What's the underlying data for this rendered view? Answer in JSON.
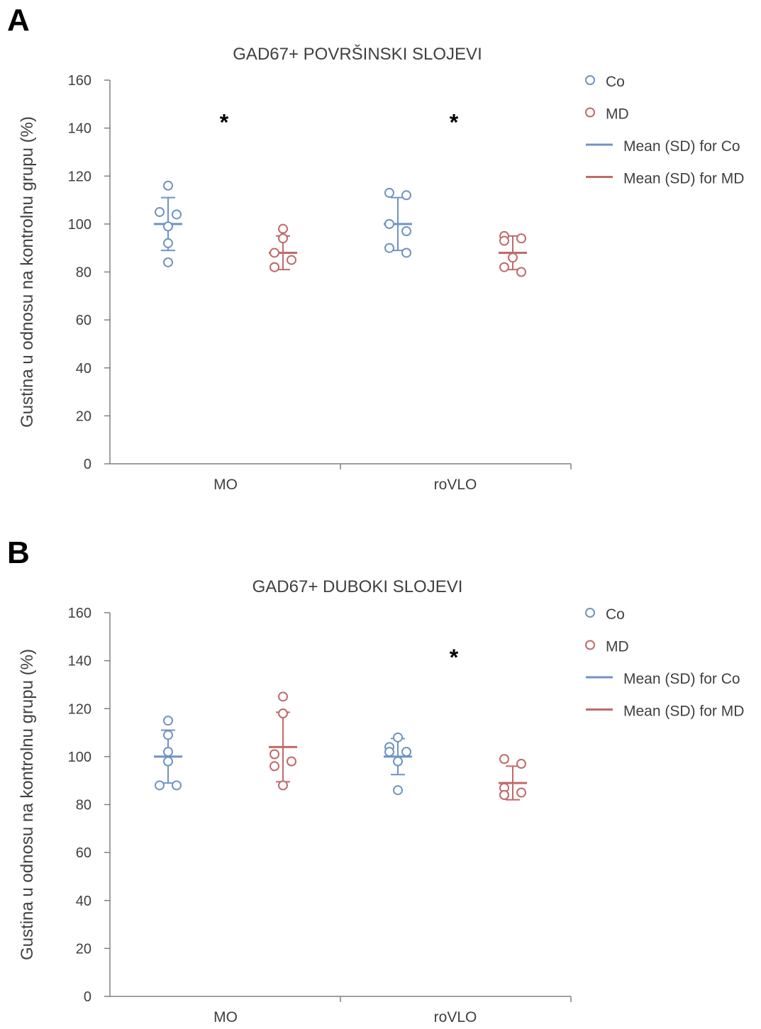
{
  "panels": [
    {
      "letter": "A",
      "chart_data": {
        "type": "scatter",
        "title": "GAD67+ POVRŠINSKI SLOJEVI",
        "ylabel": "Gustina u odnosu na kontrolnu grupu (%)",
        "xlabel": "",
        "ylim": [
          0,
          160
        ],
        "yticks": [
          "0",
          "20",
          "40",
          "60",
          "80",
          "100",
          "120",
          "140",
          "160"
        ],
        "categories": [
          "MO",
          "roVLO"
        ],
        "legend_position": "top-right",
        "series": [
          {
            "name": "Co",
            "color": "#6f93c4",
            "groups": [
              {
                "category": "MO",
                "points": [
                  116,
                  105,
                  104,
                  99,
                  92,
                  84
                ],
                "mean": 100,
                "sd": 11
              },
              {
                "category": "roVLO",
                "points": [
                  113,
                  112,
                  100,
                  97,
                  90,
                  88
                ],
                "mean": 100,
                "sd": 11
              }
            ]
          },
          {
            "name": "MD",
            "color": "#c06a6a",
            "groups": [
              {
                "category": "MO",
                "points": [
                  98,
                  94,
                  88,
                  85,
                  82,
                  82
                ],
                "mean": 88,
                "sd": 7
              },
              {
                "category": "roVLO",
                "points": [
                  95,
                  94,
                  93,
                  86,
                  82,
                  80
                ],
                "mean": 88,
                "sd": 7
              }
            ]
          }
        ],
        "legend": [
          "Co",
          "MD",
          "Mean (SD) for Co",
          "Mean (SD) for MD"
        ],
        "annotations": [
          {
            "text": "*",
            "category": "MO",
            "y": 145
          },
          {
            "text": "*",
            "category": "roVLO",
            "y": 145
          }
        ]
      }
    },
    {
      "letter": "B",
      "chart_data": {
        "type": "scatter",
        "title": "GAD67+ DUBOKI SLOJEVI",
        "ylabel": "Gustina u odnosu na kontrolnu grupu (%)",
        "xlabel": "",
        "ylim": [
          0,
          160
        ],
        "yticks": [
          "0",
          "20",
          "40",
          "60",
          "80",
          "100",
          "120",
          "140",
          "160"
        ],
        "categories": [
          "MO",
          "roVLO"
        ],
        "legend_position": "top-right",
        "series": [
          {
            "name": "Co",
            "color": "#6f93c4",
            "groups": [
              {
                "category": "MO",
                "points": [
                  115,
                  109,
                  102,
                  98,
                  88,
                  88
                ],
                "mean": 100,
                "sd": 11
              },
              {
                "category": "roVLO",
                "points": [
                  108,
                  104,
                  102,
                  102,
                  98,
                  86
                ],
                "mean": 100,
                "sd": 7.5
              }
            ]
          },
          {
            "name": "MD",
            "color": "#c06a6a",
            "groups": [
              {
                "category": "MO",
                "points": [
                  125,
                  118,
                  101,
                  98,
                  96,
                  88
                ],
                "mean": 104,
                "sd": 14.5
              },
              {
                "category": "roVLO",
                "points": [
                  99,
                  97,
                  87,
                  85,
                  84,
                  84
                ],
                "mean": 89,
                "sd": 7
              }
            ]
          }
        ],
        "legend": [
          "Co",
          "MD",
          "Mean (SD) for Co",
          "Mean (SD) for MD"
        ],
        "annotations": [
          {
            "text": "*",
            "category": "roVLO",
            "y": 144
          }
        ]
      }
    }
  ]
}
